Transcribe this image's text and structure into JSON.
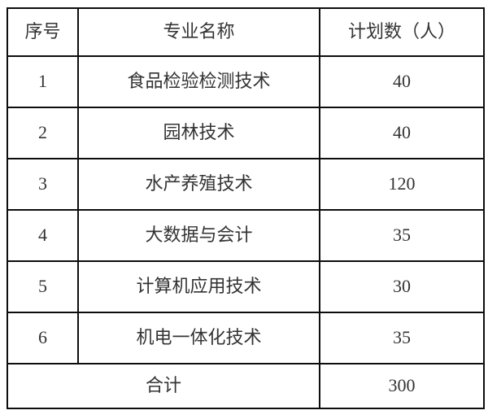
{
  "table": {
    "headers": {
      "no": "序号",
      "major": "专业名称",
      "plan": "计划数（人）"
    },
    "rows": [
      {
        "no": "1",
        "major": "食品检验检测技术",
        "plan": "40"
      },
      {
        "no": "2",
        "major": "园林技术",
        "plan": "40"
      },
      {
        "no": "3",
        "major": "水产养殖技术",
        "plan": "120"
      },
      {
        "no": "4",
        "major": "大数据与会计",
        "plan": "35"
      },
      {
        "no": "5",
        "major": "计算机应用技术",
        "plan": "30"
      },
      {
        "no": "6",
        "major": "机电一体化技术",
        "plan": "35"
      }
    ],
    "footer": {
      "label": "合计",
      "total": "300"
    }
  },
  "colors": {
    "border": "#0d0d0d",
    "text": "#333333",
    "background": "#ffffff"
  }
}
